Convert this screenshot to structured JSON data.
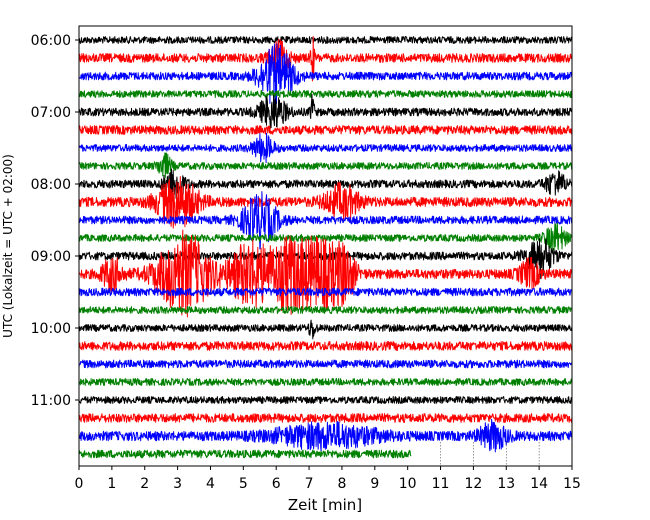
{
  "chart_data": {
    "type": "line",
    "title": "",
    "xlabel": "Zeit  [min]",
    "ylabel": "UTC (Lokalzeit = UTC + 02:00)",
    "xlim": [
      0,
      15
    ],
    "x_ticks": [
      "0",
      "1",
      "2",
      "3",
      "4",
      "5",
      "6",
      "7",
      "8",
      "9",
      "10",
      "11",
      "12",
      "13",
      "14",
      "15"
    ],
    "y_ticks": [
      "06:00",
      "07:00",
      "08:00",
      "09:00",
      "10:00",
      "11:00"
    ],
    "grid": false,
    "legend": "none",
    "trace_colors": [
      "#000000",
      "#ff0000",
      "#0000ff",
      "#008000"
    ],
    "rows_start": "06:00",
    "row_interval_min": 15,
    "last_row_end_min": 10.1,
    "series": [
      {
        "start": "06:00",
        "color": "#000000",
        "baseline_noise": 0.22,
        "events": []
      },
      {
        "start": "06:15",
        "color": "#ff0000",
        "baseline_noise": 0.28,
        "events": [
          {
            "x": 6.1,
            "amp": 0.9,
            "width": 0.3
          },
          {
            "x": 7.1,
            "amp": 1.6,
            "width": 0.05
          }
        ]
      },
      {
        "start": "06:30",
        "color": "#0000ff",
        "baseline_noise": 0.25,
        "events": [
          {
            "x": 6.0,
            "amp": 1.8,
            "width": 0.5
          }
        ]
      },
      {
        "start": "06:45",
        "color": "#008000",
        "baseline_noise": 0.22,
        "events": []
      },
      {
        "start": "07:00",
        "color": "#000000",
        "baseline_noise": 0.25,
        "events": [
          {
            "x": 5.9,
            "amp": 1.0,
            "width": 0.4
          },
          {
            "x": 7.1,
            "amp": 1.2,
            "width": 0.05
          }
        ]
      },
      {
        "start": "07:15",
        "color": "#ff0000",
        "baseline_noise": 0.28,
        "events": []
      },
      {
        "start": "07:30",
        "color": "#0000ff",
        "baseline_noise": 0.22,
        "events": [
          {
            "x": 5.6,
            "amp": 0.8,
            "width": 0.3
          }
        ]
      },
      {
        "start": "07:45",
        "color": "#008000",
        "baseline_noise": 0.22,
        "events": [
          {
            "x": 2.6,
            "amp": 0.7,
            "width": 0.2
          }
        ]
      },
      {
        "start": "08:00",
        "color": "#000000",
        "baseline_noise": 0.25,
        "events": [
          {
            "x": 2.9,
            "amp": 0.9,
            "width": 0.3
          },
          {
            "x": 14.5,
            "amp": 0.7,
            "width": 0.3
          }
        ]
      },
      {
        "start": "08:15",
        "color": "#ff0000",
        "baseline_noise": 0.3,
        "events": [
          {
            "x": 3.0,
            "amp": 1.5,
            "width": 0.6
          },
          {
            "x": 8.0,
            "amp": 1.0,
            "width": 0.5
          }
        ]
      },
      {
        "start": "08:30",
        "color": "#0000ff",
        "baseline_noise": 0.25,
        "events": [
          {
            "x": 5.5,
            "amp": 1.6,
            "width": 0.5
          }
        ]
      },
      {
        "start": "08:45",
        "color": "#008000",
        "baseline_noise": 0.22,
        "events": [
          {
            "x": 14.5,
            "amp": 0.8,
            "width": 0.3
          }
        ]
      },
      {
        "start": "09:00",
        "color": "#000000",
        "baseline_noise": 0.25,
        "events": [
          {
            "x": 14.0,
            "amp": 1.2,
            "width": 0.4
          }
        ]
      },
      {
        "start": "09:15",
        "color": "#ff0000",
        "baseline_noise": 0.3,
        "events": [
          {
            "x": 3.2,
            "amp": 2.5,
            "width": 0.8
          },
          {
            "x": 5.2,
            "amp": 2.0,
            "width": 0.6
          },
          {
            "x": 6.4,
            "amp": 2.2,
            "width": 0.6
          },
          {
            "x": 7.4,
            "amp": 2.0,
            "width": 0.6
          },
          {
            "x": 8.1,
            "amp": 1.4,
            "width": 0.3
          },
          {
            "x": 1.0,
            "amp": 1.0,
            "width": 0.3
          },
          {
            "x": 13.7,
            "amp": 0.8,
            "width": 0.3
          }
        ]
      },
      {
        "start": "09:30",
        "color": "#0000ff",
        "baseline_noise": 0.25,
        "events": []
      },
      {
        "start": "09:45",
        "color": "#008000",
        "baseline_noise": 0.22,
        "events": []
      },
      {
        "start": "10:00",
        "color": "#000000",
        "baseline_noise": 0.22,
        "events": [
          {
            "x": 7.1,
            "amp": 0.6,
            "width": 0.1
          }
        ]
      },
      {
        "start": "10:15",
        "color": "#ff0000",
        "baseline_noise": 0.28,
        "events": []
      },
      {
        "start": "10:30",
        "color": "#0000ff",
        "baseline_noise": 0.25,
        "events": []
      },
      {
        "start": "10:45",
        "color": "#008000",
        "baseline_noise": 0.22,
        "events": []
      },
      {
        "start": "11:00",
        "color": "#000000",
        "baseline_noise": 0.22,
        "events": []
      },
      {
        "start": "11:15",
        "color": "#ff0000",
        "baseline_noise": 0.28,
        "events": []
      },
      {
        "start": "11:30",
        "color": "#0000ff",
        "baseline_noise": 0.3,
        "events": [
          {
            "x": 7.5,
            "amp": 0.7,
            "width": 1.5
          },
          {
            "x": 12.6,
            "amp": 0.8,
            "width": 0.4
          }
        ]
      },
      {
        "start": "11:45",
        "color": "#008000",
        "baseline_noise": 0.25,
        "events": []
      }
    ]
  }
}
